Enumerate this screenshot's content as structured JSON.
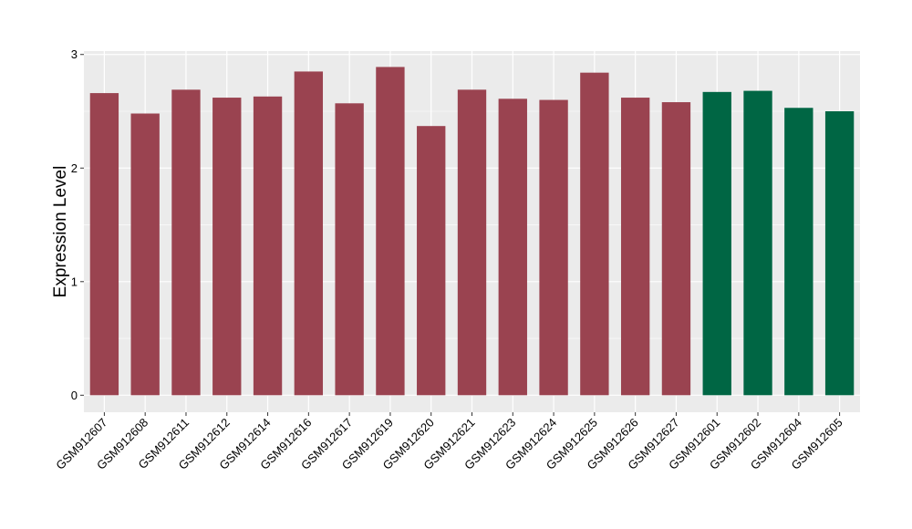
{
  "chart_data": {
    "type": "bar",
    "ylabel": "Expression Level",
    "xlabel": "",
    "ylim": [
      -0.15,
      3.03
    ],
    "yticks": [
      0,
      1,
      2,
      3
    ],
    "grid": true,
    "colors": {
      "group_a": "#9a4350",
      "group_b": "#006644",
      "panel": "#ebebeb",
      "gridline": "#ffffff"
    },
    "categories": [
      "GSM912607",
      "GSM912608",
      "GSM912611",
      "GSM912612",
      "GSM912614",
      "GSM912616",
      "GSM912617",
      "GSM912619",
      "GSM912620",
      "GSM912621",
      "GSM912623",
      "GSM912624",
      "GSM912625",
      "GSM912626",
      "GSM912627",
      "GSM912601",
      "GSM912602",
      "GSM912604",
      "GSM912605"
    ],
    "values": [
      2.66,
      2.48,
      2.69,
      2.62,
      2.63,
      2.85,
      2.57,
      2.89,
      2.37,
      2.69,
      2.61,
      2.6,
      2.84,
      2.62,
      2.58,
      2.67,
      2.68,
      2.53,
      2.5
    ],
    "groups": [
      "a",
      "a",
      "a",
      "a",
      "a",
      "a",
      "a",
      "a",
      "a",
      "a",
      "a",
      "a",
      "a",
      "a",
      "a",
      "b",
      "b",
      "b",
      "b"
    ]
  }
}
